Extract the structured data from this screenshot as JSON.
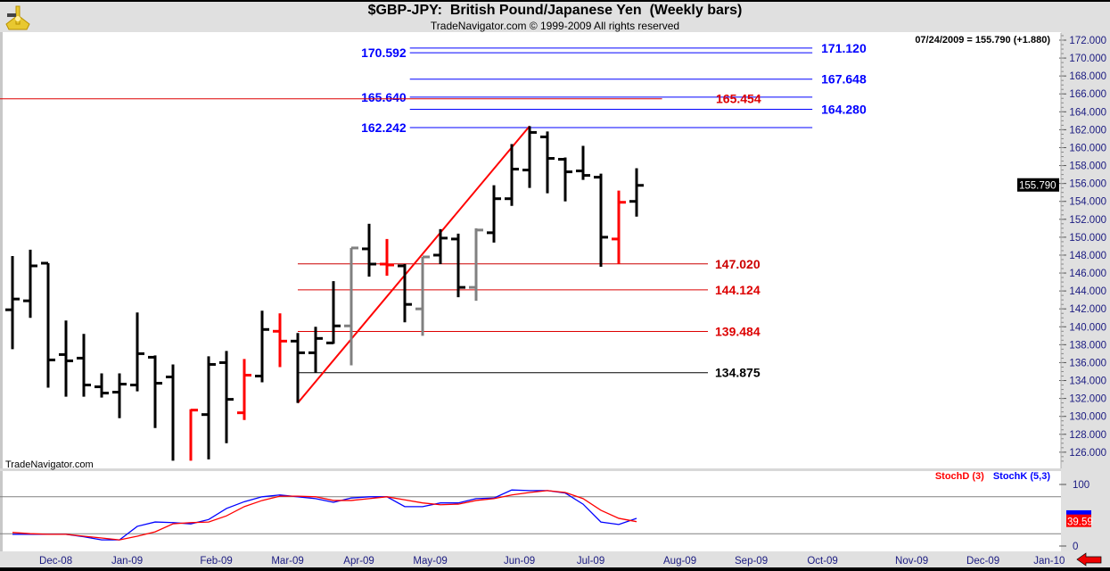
{
  "header": {
    "title": "$GBP-JPY:  British Pound/Japanese Yen  (Weekly bars)",
    "subtitle": "TradeNavigator.com © 1999-2009 All rights reserved",
    "watermark": "TradeNavigator.com",
    "readout": "07/24/2009 = 155.790 (+1.880)",
    "last_price_label": "155.790",
    "logo_icon": "sextant-icon"
  },
  "colors": {
    "up": "#000000",
    "down": "#ff0000",
    "neutral": "#808080",
    "stochD": "#ff0000",
    "stochK": "#0000ff",
    "blueLevel": "#0000ff",
    "redLevel": "#dd0000",
    "darkRedLevel": "#cc0000",
    "blackLevel": "#000000",
    "panel": "#e0e0e0"
  },
  "chart_data": [
    {
      "type": "ohlc",
      "title": "$GBP-JPY:  British Pound/Japanese Yen  (Weekly bars)",
      "ylim": [
        125,
        172.5
      ],
      "yticks": [
        126,
        128,
        130,
        132,
        134,
        136,
        138,
        140,
        142,
        144,
        146,
        148,
        150,
        152,
        154,
        156,
        158,
        160,
        162,
        164,
        166,
        168,
        170,
        172
      ],
      "ytick_format": "3 decimals",
      "xtick_labels": [
        {
          "label": "Dec-08",
          "date": "2008-12-08"
        },
        {
          "label": "Jan-09",
          "date": "2009-01-05"
        },
        {
          "label": "Feb-09",
          "date": "2009-02-09"
        },
        {
          "label": "Mar-09",
          "date": "2009-03-09"
        },
        {
          "label": "Apr-09",
          "date": "2009-04-06"
        },
        {
          "label": "May-09",
          "date": "2009-05-04"
        },
        {
          "label": "Jun-09",
          "date": "2009-06-08"
        },
        {
          "label": "Jul-09",
          "date": "2009-07-06"
        },
        {
          "label": "Aug-09",
          "date": "2009-08-10"
        },
        {
          "label": "Sep-09",
          "date": "2009-09-07"
        },
        {
          "label": "Oct-09",
          "date": "2009-10-05"
        },
        {
          "label": "Nov-09",
          "date": "2009-11-09"
        },
        {
          "label": "Dec-09",
          "date": "2009-12-07"
        },
        {
          "label": "Jan-10",
          "date": "2010-01-02"
        }
      ],
      "bars": [
        {
          "date": "2008-11-21",
          "o": 141.9,
          "h": 147.9,
          "l": 137.5,
          "c": 143.1,
          "color": "up"
        },
        {
          "date": "2008-11-28",
          "o": 142.9,
          "h": 148.6,
          "l": 141.0,
          "c": 146.8,
          "color": "up"
        },
        {
          "date": "2008-12-05",
          "o": 147.1,
          "h": 147.1,
          "l": 133.2,
          "c": 136.3,
          "color": "up"
        },
        {
          "date": "2008-12-12",
          "o": 136.9,
          "h": 140.7,
          "l": 132.2,
          "c": 136.2,
          "color": "up"
        },
        {
          "date": "2008-12-19",
          "o": 136.5,
          "h": 139.2,
          "l": 132.2,
          "c": 133.5,
          "color": "up"
        },
        {
          "date": "2008-12-26",
          "o": 133.3,
          "h": 134.8,
          "l": 132.1,
          "c": 132.6,
          "color": "up"
        },
        {
          "date": "2009-01-02",
          "o": 132.7,
          "h": 134.8,
          "l": 129.8,
          "c": 133.6,
          "color": "up"
        },
        {
          "date": "2009-01-09",
          "o": 133.5,
          "h": 141.6,
          "l": 132.8,
          "c": 137.0,
          "color": "up"
        },
        {
          "date": "2009-01-16",
          "o": 136.6,
          "h": 136.8,
          "l": 128.7,
          "c": 133.7,
          "color": "up"
        },
        {
          "date": "2009-01-23",
          "o": 134.4,
          "h": 135.8,
          "l": 124.5,
          "c": 124.8,
          "color": "up"
        },
        {
          "date": "2009-01-30",
          "o": 124.5,
          "h": 130.8,
          "l": 124.2,
          "c": 130.7,
          "color": "down"
        },
        {
          "date": "2009-02-06",
          "o": 130.2,
          "h": 136.7,
          "l": 125.2,
          "c": 135.8,
          "color": "up"
        },
        {
          "date": "2009-02-13",
          "o": 136.0,
          "h": 137.3,
          "l": 127.0,
          "c": 131.9,
          "color": "up"
        },
        {
          "date": "2009-02-20",
          "o": 130.4,
          "h": 136.4,
          "l": 129.6,
          "c": 134.6,
          "color": "down"
        },
        {
          "date": "2009-02-27",
          "o": 134.5,
          "h": 141.8,
          "l": 133.8,
          "c": 139.7,
          "color": "up"
        },
        {
          "date": "2009-03-06",
          "o": 139.5,
          "h": 141.5,
          "l": 135.5,
          "c": 138.4,
          "color": "down"
        },
        {
          "date": "2009-03-13",
          "o": 138.4,
          "h": 139.3,
          "l": 131.5,
          "c": 137.1,
          "color": "up"
        },
        {
          "date": "2009-03-20",
          "o": 137.1,
          "h": 140.0,
          "l": 134.9,
          "c": 138.7,
          "color": "up"
        },
        {
          "date": "2009-03-27",
          "o": 138.2,
          "h": 145.1,
          "l": 138.1,
          "c": 140.1,
          "color": "up"
        },
        {
          "date": "2009-04-03",
          "o": 140.1,
          "h": 148.8,
          "l": 135.7,
          "c": 148.8,
          "color": "neutral"
        },
        {
          "date": "2009-04-10",
          "o": 148.7,
          "h": 151.5,
          "l": 145.6,
          "c": 147.0,
          "color": "up"
        },
        {
          "date": "2009-04-17",
          "o": 147.0,
          "h": 149.8,
          "l": 145.7,
          "c": 146.9,
          "color": "down"
        },
        {
          "date": "2009-04-24",
          "o": 146.8,
          "h": 147.0,
          "l": 140.5,
          "c": 142.5,
          "color": "up"
        },
        {
          "date": "2009-05-01",
          "o": 142.0,
          "h": 147.8,
          "l": 139.0,
          "c": 147.8,
          "color": "neutral"
        },
        {
          "date": "2009-05-08",
          "o": 148.0,
          "h": 150.9,
          "l": 147.0,
          "c": 149.9,
          "color": "up"
        },
        {
          "date": "2009-05-15",
          "o": 149.8,
          "h": 150.4,
          "l": 143.3,
          "c": 144.4,
          "color": "up"
        },
        {
          "date": "2009-05-22",
          "o": 144.4,
          "h": 151.0,
          "l": 142.9,
          "c": 150.8,
          "color": "neutral"
        },
        {
          "date": "2009-05-29",
          "o": 150.5,
          "h": 155.8,
          "l": 149.4,
          "c": 154.3,
          "color": "up"
        },
        {
          "date": "2009-06-05",
          "o": 154.3,
          "h": 160.4,
          "l": 153.5,
          "c": 157.6,
          "color": "up"
        },
        {
          "date": "2009-06-12",
          "o": 157.5,
          "h": 162.4,
          "l": 155.5,
          "c": 161.7,
          "color": "up"
        },
        {
          "date": "2009-06-19",
          "o": 161.2,
          "h": 161.8,
          "l": 154.9,
          "c": 158.8,
          "color": "up"
        },
        {
          "date": "2009-06-26",
          "o": 158.7,
          "h": 158.9,
          "l": 154.0,
          "c": 157.3,
          "color": "up"
        },
        {
          "date": "2009-07-03",
          "o": 157.4,
          "h": 160.2,
          "l": 156.4,
          "c": 156.9,
          "color": "up"
        },
        {
          "date": "2009-07-10",
          "o": 156.7,
          "h": 157.1,
          "l": 146.7,
          "c": 150.0,
          "color": "up"
        },
        {
          "date": "2009-07-17",
          "o": 149.8,
          "h": 155.2,
          "l": 147.0,
          "c": 153.9,
          "color": "down"
        },
        {
          "date": "2009-07-24",
          "o": 154.0,
          "h": 157.7,
          "l": 152.3,
          "c": 155.79,
          "color": "up"
        }
      ],
      "trendline": {
        "from": {
          "date": "2009-03-13",
          "value": 131.5
        },
        "to": {
          "date": "2009-06-12",
          "value": 162.4
        },
        "color": "#ff0000"
      },
      "levels": [
        {
          "label": "171.120",
          "value": 171.12,
          "color": "blueLevel",
          "from": "2009-04-26",
          "to": "2009-10-01",
          "label_side": "right"
        },
        {
          "label": "170.592",
          "value": 170.592,
          "color": "blueLevel",
          "from": "2009-04-26",
          "to": "2009-10-01",
          "label_side": "left"
        },
        {
          "label": "167.648",
          "value": 167.648,
          "color": "blueLevel",
          "from": "2009-04-26",
          "to": "2009-10-01",
          "label_side": "right"
        },
        {
          "label": "165.640",
          "value": 165.64,
          "color": "blueLevel",
          "from": "2009-04-26",
          "to": "2009-10-01",
          "label_side": "left"
        },
        {
          "label": "164.280",
          "value": 164.28,
          "color": "blueLevel",
          "from": "2009-04-26",
          "to": "2009-10-01",
          "label_side": "right"
        },
        {
          "label": "162.242",
          "value": 162.242,
          "color": "blueLevel",
          "from": "2009-04-26",
          "to": "2009-10-01",
          "label_side": "left"
        },
        {
          "label": "165.454",
          "value": 165.454,
          "color": "redLevel",
          "from": "2008-11-16",
          "to": "2009-08-03",
          "label_side": "end"
        },
        {
          "label": "147.020",
          "value": 147.02,
          "color": "darkRedLevel",
          "from": "2009-03-13",
          "to": "2009-08-21",
          "label_side": "end"
        },
        {
          "label": "144.124",
          "value": 144.124,
          "color": "redLevel",
          "from": "2009-03-13",
          "to": "2009-08-21",
          "label_side": "end"
        },
        {
          "label": "139.484",
          "value": 139.484,
          "color": "redLevel",
          "from": "2009-03-13",
          "to": "2009-08-21",
          "label_side": "end"
        },
        {
          "label": "134.875",
          "value": 134.875,
          "color": "blackLevel",
          "from": "2009-03-13",
          "to": "2009-08-21",
          "label_side": "end"
        }
      ]
    },
    {
      "type": "line",
      "ylim": [
        0,
        100
      ],
      "yticks": [
        0,
        100
      ],
      "reference_lines": [
        20,
        80
      ],
      "legend": [
        "StochD (3)",
        "StochK (5,3)"
      ],
      "legend_placement": "top-right",
      "last_value_label": "39.59",
      "series": [
        {
          "name": "StochD (3)",
          "color": "stochD",
          "values": [
            22,
            20,
            19,
            19,
            16,
            13,
            10,
            16,
            23,
            36,
            38,
            39,
            49,
            64,
            74,
            81,
            81,
            80,
            74,
            74,
            77,
            80,
            75,
            70,
            67,
            68,
            74,
            77,
            83,
            87,
            90,
            87,
            77,
            58,
            45,
            39.59
          ]
        },
        {
          "name": "StochK (5,3)",
          "color": "stochK",
          "values": [
            19,
            19,
            19,
            19,
            15,
            10,
            10,
            32,
            39,
            38,
            36,
            43,
            61,
            72,
            80,
            83,
            80,
            77,
            71,
            78,
            80,
            80,
            64,
            64,
            70,
            70,
            77,
            78,
            91,
            90,
            90,
            86,
            68,
            39,
            35,
            45
          ]
        }
      ]
    }
  ]
}
